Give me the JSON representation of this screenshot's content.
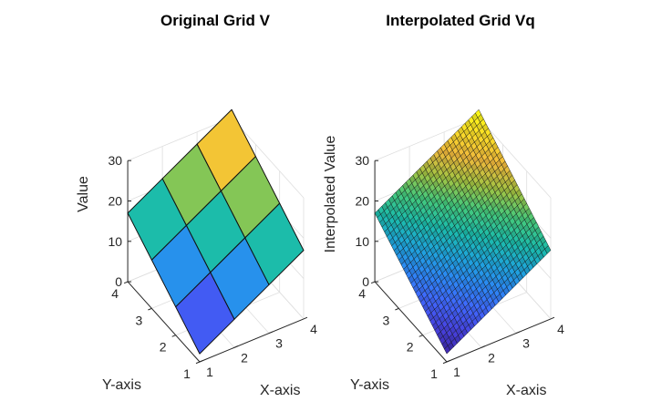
{
  "chart_data": [
    {
      "type": "surface",
      "title": "Original Grid V",
      "xlabel": "X-axis",
      "ylabel": "Y-axis",
      "zlabel": "Value",
      "x": [
        1,
        2,
        3,
        4
      ],
      "y": [
        1,
        2,
        3,
        4
      ],
      "z": [
        [
          2,
          7,
          12,
          17
        ],
        [
          7,
          12,
          17,
          22
        ],
        [
          12,
          17,
          22,
          27
        ],
        [
          17,
          22,
          27,
          32
        ]
      ],
      "xlim": [
        1,
        4
      ],
      "ylim": [
        1,
        4
      ],
      "zlim": [
        0,
        30
      ],
      "xticks": [
        "1",
        "2",
        "3",
        "4"
      ],
      "yticks": [
        "1",
        "2",
        "3",
        "4"
      ],
      "zticks": [
        "0",
        "10",
        "20",
        "30"
      ],
      "colormap": "parula",
      "grid": true
    },
    {
      "type": "surface",
      "title": "Interpolated Grid Vq",
      "xlabel": "X-axis",
      "ylabel": "Y-axis",
      "zlabel": "Interpolated Value",
      "x_range": [
        1,
        4
      ],
      "y_range": [
        1,
        4
      ],
      "grid_step": 0.1,
      "z_formula": "5*(x-1) + 5*(y-1) + 2",
      "z_min": 2,
      "z_max": 32,
      "xlim": [
        1,
        4
      ],
      "ylim": [
        1,
        4
      ],
      "zlim": [
        0,
        30
      ],
      "xticks": [
        "1",
        "2",
        "3",
        "4"
      ],
      "yticks": [
        "1",
        "2",
        "3",
        "4"
      ],
      "zticks": [
        "0",
        "10",
        "20",
        "30"
      ],
      "colormap": "parula",
      "grid": true
    }
  ],
  "colors": {
    "parula": [
      "#3e26a8",
      "#4743e0",
      "#4067fd",
      "#2c87f5",
      "#1ea5da",
      "#1cbcaa",
      "#45c97b",
      "#a3c443",
      "#f0b93c",
      "#fadd27",
      "#f9fb15"
    ]
  }
}
